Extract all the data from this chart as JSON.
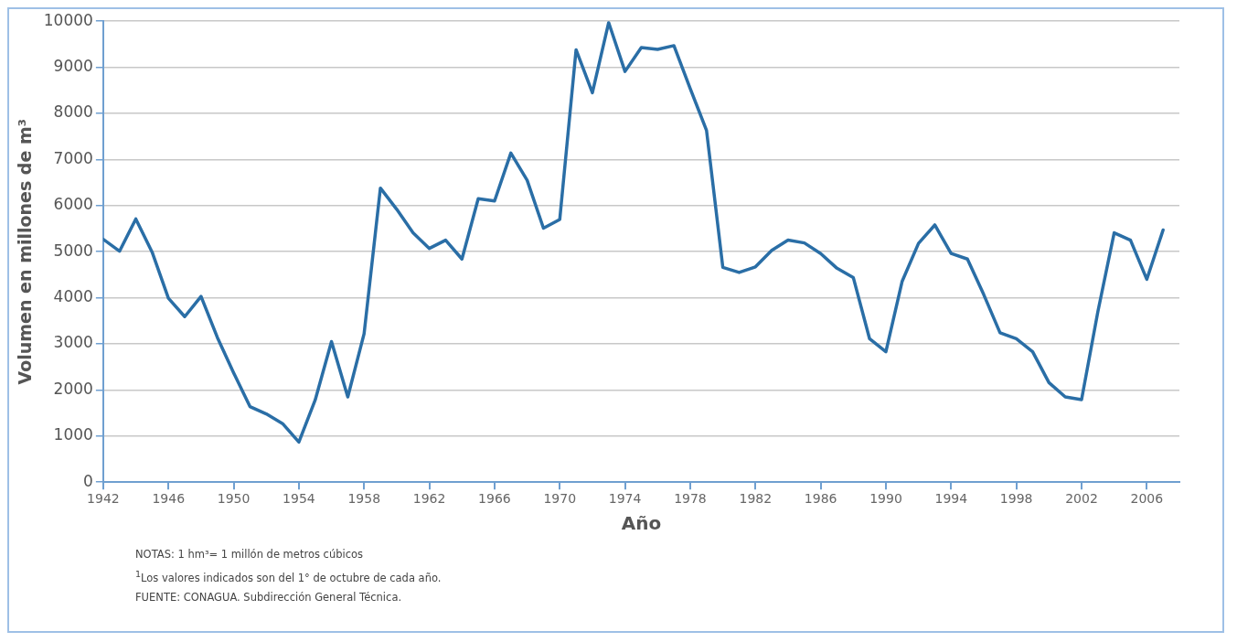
{
  "chart_data": {
    "type": "line",
    "xlabel": "Año",
    "ylabel": "Volumen en millones de m³",
    "annotations": [
      "NOTAS: 1 hm³= 1 millón de metros cúbicos",
      "$^{1}$Los valores indicados son del 1° de octubre de cada año.",
      "FUENTE: CONAGUA. Subdirección General Técnica."
    ],
    "x": [
      1942,
      1943,
      1944,
      1945,
      1946,
      1947,
      1948,
      1949,
      1950,
      1951,
      1952,
      1953,
      1954,
      1955,
      1956,
      1957,
      1958,
      1959,
      1960,
      1961,
      1962,
      1963,
      1964,
      1965,
      1966,
      1967,
      1968,
      1969,
      1970,
      1971,
      1972,
      1973,
      1974,
      1975,
      1976,
      1977,
      1978,
      1979,
      1980,
      1981,
      1982,
      1983,
      1984,
      1985,
      1986,
      1987,
      1988,
      1989,
      1990,
      1991,
      1992,
      1993,
      1994,
      1995,
      1996,
      1997,
      1998,
      1999,
      2000,
      2001,
      2002,
      2003,
      2004,
      2005,
      2006,
      2007
    ],
    "series": [
      {
        "color": "#2a6ea6",
        "values": [
          5270,
          5010,
          5710,
          4990,
          3990,
          3590,
          4030,
          3140,
          2370,
          1640,
          1480,
          1270,
          870,
          1780,
          3050,
          1850,
          3220,
          6380,
          5920,
          5410,
          5070,
          5250,
          4840,
          6150,
          6100,
          7140,
          6550,
          5510,
          5700,
          9380,
          8450,
          9970,
          8910,
          9430,
          9390,
          9470,
          8540,
          7630,
          4660,
          4550,
          4670,
          5030,
          5250,
          5190,
          4960,
          4640,
          4440,
          3110,
          2830,
          4360,
          5180,
          5580,
          4960,
          4840,
          4070,
          3240,
          3110,
          2830,
          2160,
          1850,
          1790,
          3700,
          5410,
          5250,
          4400,
          5470
        ]
      }
    ],
    "xlim": [
      1942,
      2008
    ],
    "xticks": [
      1942,
      1946,
      1950,
      1954,
      1958,
      1962,
      1966,
      1970,
      1974,
      1978,
      1982,
      1986,
      1990,
      1994,
      1998,
      2002,
      2006
    ],
    "ylim": [
      0,
      10000
    ],
    "yticks": [
      0,
      1000,
      2000,
      3000,
      4000,
      5000,
      6000,
      7000,
      8000,
      9000,
      10000
    ],
    "grid": "y",
    "legend": false,
    "marker": "none",
    "line_style": "solid"
  }
}
